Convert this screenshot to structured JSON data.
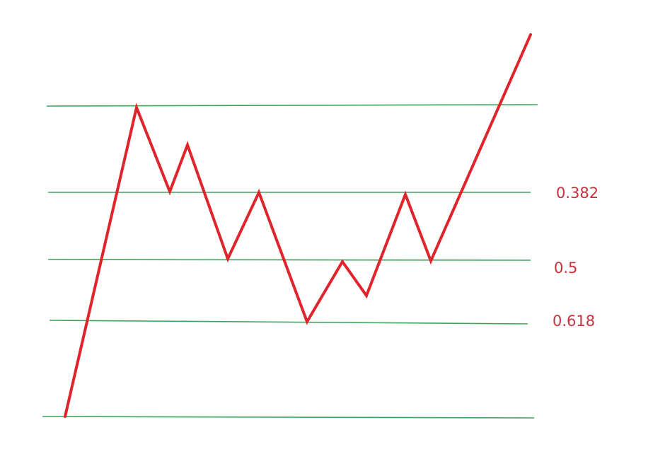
{
  "colors": {
    "level_line": "#3aa55a",
    "price_path": "#e0242c",
    "label_text": "#c8323a",
    "background": "#ffffff"
  },
  "levels": [
    {
      "id": "top",
      "label": ""
    },
    {
      "id": "fib-0-382",
      "label": "0.382"
    },
    {
      "id": "fib-0-5",
      "label": "0.5"
    },
    {
      "id": "fib-0-618",
      "label": "0.618"
    },
    {
      "id": "bottom",
      "label": ""
    }
  ]
}
